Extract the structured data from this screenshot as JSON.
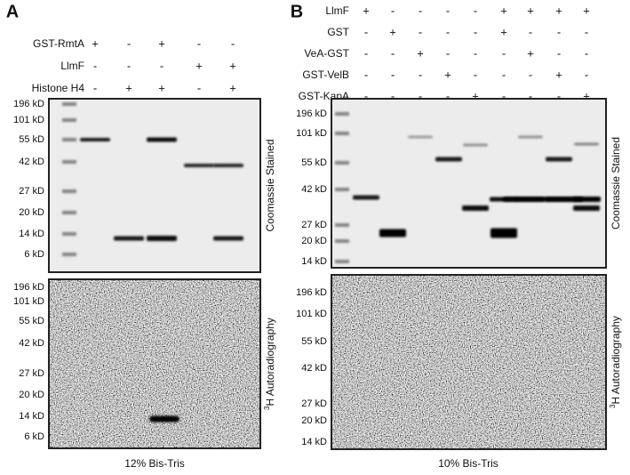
{
  "panels": [
    {
      "label": "A",
      "conditions": [
        {
          "name": "GST-RmtA",
          "lanes": [
            "+",
            "-",
            "+",
            "-",
            "-"
          ]
        },
        {
          "name": "LlmF",
          "lanes": [
            "-",
            "-",
            "-",
            "+",
            "+"
          ]
        },
        {
          "name": "Histone H4",
          "lanes": [
            "-",
            "+",
            "+",
            "-",
            "+"
          ]
        }
      ],
      "coomassie": {
        "title": "Coomassie Stained",
        "markers": [
          "196 kD",
          "101 kD",
          "55 kD",
          "42 kD",
          "27 kD",
          "20 kD",
          "14 kD",
          "6 kD"
        ]
      },
      "autoradiography": {
        "title": {
          "sup": "3",
          "text": "H Autoradiography"
        },
        "markers": [
          "196 kD",
          "101 kD",
          "55 kD",
          "42 kD",
          "27 kD",
          "20 kD",
          "14 kD",
          "6 kD"
        ]
      },
      "gel": "12% Bis-Tris"
    },
    {
      "label": "B",
      "conditions": [
        {
          "name": "LlmF",
          "lanes": [
            "+",
            "-",
            "-",
            "-",
            "-",
            "+",
            "+",
            "+",
            "+"
          ]
        },
        {
          "name": "GST",
          "lanes": [
            "-",
            "+",
            "-",
            "-",
            "-",
            "+",
            "-",
            "-",
            "-"
          ]
        },
        {
          "name": "VeA-GST",
          "lanes": [
            "-",
            "-",
            "+",
            "-",
            "-",
            "-",
            "+",
            "-",
            "-"
          ]
        },
        {
          "name": "GST-VelB",
          "lanes": [
            "-",
            "-",
            "-",
            "+",
            "-",
            "-",
            "-",
            "+",
            "-"
          ]
        },
        {
          "name": "GST-KapA",
          "lanes": [
            "-",
            "-",
            "-",
            "-",
            "+",
            "-",
            "-",
            "-",
            "+"
          ]
        }
      ],
      "coomassie": {
        "title": "Coomassie Stained",
        "markers": [
          "196 kD",
          "101 kD",
          "55 kD",
          "42 kD",
          "27 kD",
          "20 kD",
          "14 kD"
        ]
      },
      "autoradiography": {
        "title": {
          "sup": "3",
          "text": "H Autoradiography"
        },
        "markers": [
          "196 kD",
          "101 kD",
          "55 kD",
          "42 kD",
          "27 kD",
          "20 kD",
          "14 kD"
        ]
      },
      "gel": "10% Bis-Tris"
    }
  ]
}
